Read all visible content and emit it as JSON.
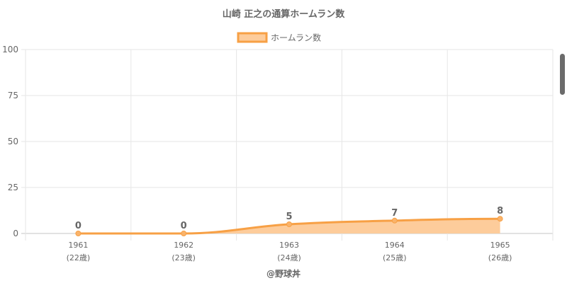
{
  "chart_data": {
    "type": "line",
    "title": "山崎 正之の通算ホームラン数",
    "categories": [
      "1961",
      "1962",
      "1963",
      "1964",
      "1965"
    ],
    "sublabels": [
      "(22歳)",
      "(23歳)",
      "(24歳)",
      "(25歳)",
      "(26歳)"
    ],
    "series": [
      {
        "name": "ホームラン数",
        "values": [
          0,
          0,
          5,
          7,
          8
        ]
      }
    ],
    "ylim": [
      0,
      100
    ],
    "yticks": [
      0,
      25,
      50,
      75,
      100
    ],
    "grid": true,
    "legend": "top",
    "fill": true,
    "colors": {
      "line": "#f7a045",
      "fill": "#fdcc9b",
      "point": "#f9b36b"
    }
  },
  "footer": {
    "credit": "@野球丼"
  }
}
